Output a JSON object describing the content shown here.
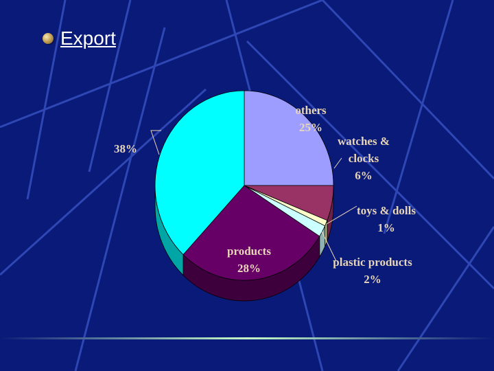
{
  "slide": {
    "title": "Export"
  },
  "colors": {
    "background": "#0a1a78",
    "lines": "#3a56c8",
    "label": "#e8d6b8"
  },
  "chart_data": {
    "type": "pie",
    "title": "",
    "slices": [
      {
        "label": "others",
        "value": 25,
        "display": "25%",
        "color": "#9d9cff",
        "side": "#6b6bc0"
      },
      {
        "label": "watches & clocks",
        "value": 6,
        "display": "6%",
        "color": "#993366",
        "side": "#6b2246"
      },
      {
        "label": "toys & dolls",
        "value": 1,
        "display": "1%",
        "color": "#ffffcc",
        "side": "#b5b58a"
      },
      {
        "label": "plastic products",
        "value": 2,
        "display": "2%",
        "color": "#ccffff",
        "side": "#8fb3b3"
      },
      {
        "label": "products",
        "value": 28,
        "display": "28%",
        "color": "#660066",
        "side": "#3d003d"
      },
      {
        "label": "",
        "value": 38,
        "display": "38%",
        "color": "#00ffff",
        "side": "#00a6a6"
      }
    ],
    "legend": "none"
  }
}
